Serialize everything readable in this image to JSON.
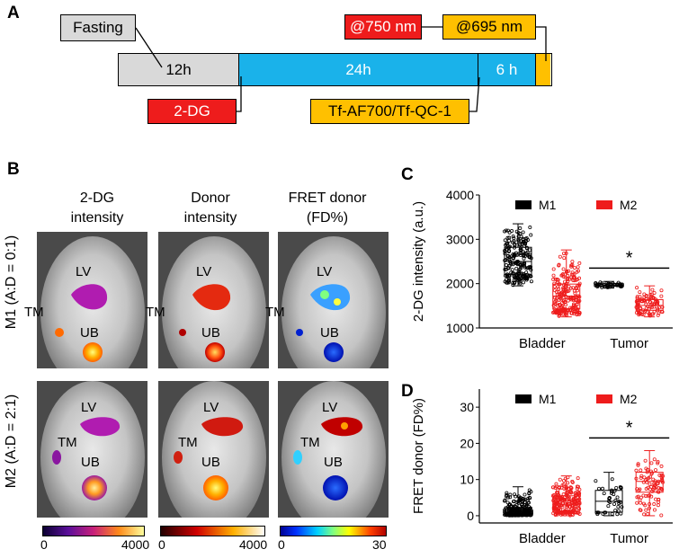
{
  "panel_a": {
    "letter": "A",
    "fasting": "Fasting",
    "seg_12h": "12h",
    "seg_24h": "24h",
    "seg_6h": "6 h",
    "ex750": "@750 nm",
    "ex695": "@695 nm",
    "dg": "2-DG",
    "probe": "Tf-AF700/Tf-QC-1",
    "colors": {
      "gray": "#d9d9d9",
      "blue": "#1ab2ea",
      "red": "#ee1c1c",
      "orange": "#ffc000"
    }
  },
  "panel_b": {
    "letter": "B",
    "col1": [
      "2-DG",
      "intensity"
    ],
    "col2": [
      "Donor",
      "intensity"
    ],
    "col3": [
      "FRET donor",
      "(FD%)"
    ],
    "row1": "M1 (A:D = 0:1)",
    "row2": "M2  (A:D = 2:1)",
    "organ_lv": "LV",
    "organ_tm": "TM",
    "organ_ub": "UB",
    "cb1_min": "0",
    "cb1_max": "4000",
    "cb2_min": "0",
    "cb2_max": "4000",
    "cb3_min": "0",
    "cb3_max": "30"
  },
  "panel_c": {
    "letter": "C",
    "ylabel": "2-DG intensity (a.u.)",
    "yticks": [
      "1000",
      "2000",
      "3000",
      "4000"
    ],
    "categories": [
      "Bladder",
      "Tumor"
    ],
    "legend": [
      "M1",
      "M2"
    ],
    "star": "*"
  },
  "panel_d": {
    "letter": "D",
    "ylabel": "FRET donor (FD%)",
    "yticks": [
      "0",
      "10",
      "20",
      "30"
    ],
    "categories": [
      "Bladder",
      "Tumor"
    ],
    "legend": [
      "M1",
      "M2"
    ],
    "star": "*"
  },
  "chart_data": [
    {
      "type": "scatter",
      "ylabel": "2-DG intensity (a.u.)",
      "ylim": [
        1000,
        4000
      ],
      "categories": [
        "Bladder",
        "Tumor"
      ],
      "series": [
        {
          "name": "M1",
          "color": "#000000",
          "boxes": [
            {
              "category": "Bladder",
              "min": 1950,
              "q1": 2200,
              "median": 2500,
              "q3": 2820,
              "max": 3350
            },
            {
              "category": "Tumor",
              "min": 1900,
              "q1": 1940,
              "median": 1970,
              "q3": 2000,
              "max": 2050
            }
          ]
        },
        {
          "name": "M2",
          "color": "#ee1c1c",
          "boxes": [
            {
              "category": "Bladder",
              "min": 1250,
              "q1": 1430,
              "median": 1720,
              "q3": 1990,
              "max": 2760
            },
            {
              "category": "Tumor",
              "min": 1250,
              "q1": 1400,
              "median": 1510,
              "q3": 1640,
              "max": 1950
            }
          ]
        }
      ],
      "annotation": "*"
    },
    {
      "type": "scatter",
      "ylabel": "FRET donor (FD%)",
      "ylim": [
        -2,
        35
      ],
      "categories": [
        "Bladder",
        "Tumor"
      ],
      "series": [
        {
          "name": "M1",
          "color": "#000000",
          "boxes": [
            {
              "category": "Bladder",
              "min": 0,
              "q1": 0.3,
              "median": 1.0,
              "q3": 2.2,
              "max": 8
            },
            {
              "category": "Tumor",
              "min": 0,
              "q1": 1.0,
              "median": 4.0,
              "q3": 7.0,
              "max": 12
            }
          ]
        },
        {
          "name": "M2",
          "color": "#ee1c1c",
          "boxes": [
            {
              "category": "Bladder",
              "min": 0,
              "q1": 1.2,
              "median": 3.0,
              "q3": 5.5,
              "max": 11
            },
            {
              "category": "Tumor",
              "min": 0,
              "q1": 6.5,
              "median": 9.5,
              "q3": 12.0,
              "max": 18
            }
          ]
        }
      ],
      "annotation": "*"
    }
  ]
}
